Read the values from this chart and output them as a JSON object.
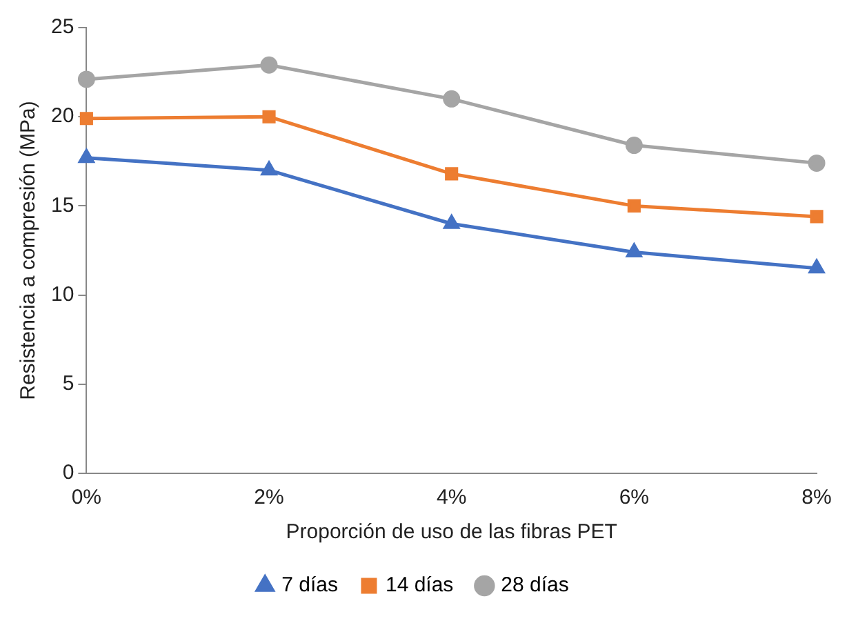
{
  "chart_data": {
    "type": "line",
    "xlabel": "Proporción de uso de las fibras PET",
    "ylabel": "Resistencia a compresión (MPa)",
    "categories": [
      "0%",
      "2%",
      "4%",
      "6%",
      "8%"
    ],
    "series": [
      {
        "name": "7 días",
        "color": "#4472c4",
        "marker": "triangle",
        "values": [
          17.7,
          17.0,
          14.0,
          12.4,
          11.5
        ]
      },
      {
        "name": "14 días",
        "color": "#ed7d31",
        "marker": "square",
        "values": [
          19.9,
          20.0,
          16.8,
          15.0,
          14.4
        ]
      },
      {
        "name": "28 días",
        "color": "#a5a5a5",
        "marker": "circle",
        "values": [
          22.1,
          22.9,
          21.0,
          18.4,
          17.4
        ]
      }
    ],
    "ylim": [
      0,
      25
    ],
    "yticks": [
      0,
      5,
      10,
      15,
      20,
      25
    ],
    "grid": false,
    "legend": "bottom",
    "line_style": "solid"
  }
}
